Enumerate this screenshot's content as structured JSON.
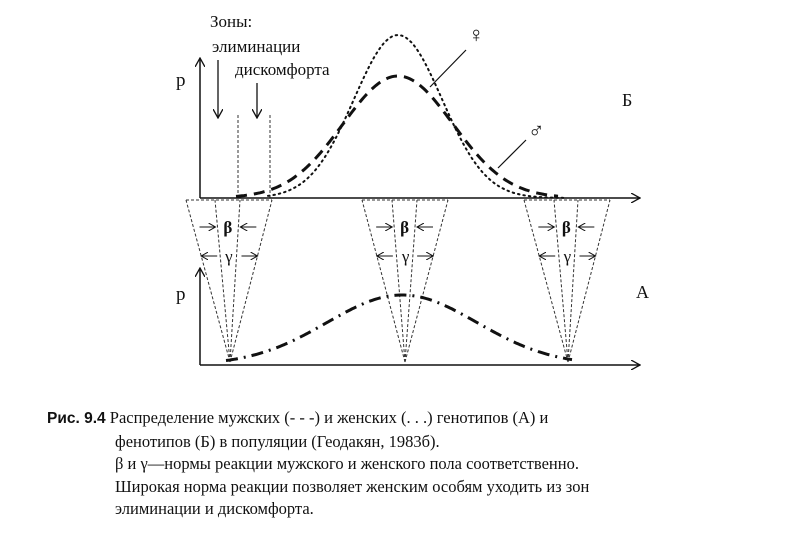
{
  "diagram": {
    "zones_title": "Зоны:",
    "zone_elimination": "элиминации",
    "zone_discomfort": "дискомфорта",
    "axis_p": "p",
    "panel_top_label": "Б",
    "panel_bottom_label": "А",
    "female_symbol": "♀",
    "male_symbol": "♂",
    "beta": "β",
    "gamma": "γ"
  },
  "caption": {
    "fig_label": "Рис. 9.4",
    "line1": "Распределение мужских (- - -) и женских (. . .) генотипов (А) и",
    "line2": "фенотипов (Б) в популяции (Геодакян, 1983б).",
    "line3": "β и γ—нормы реакции мужского и женского пола соответственно.",
    "line4": "Широкая норма реакции позволяет женским особям уходить из зон",
    "line5": "элиминации и дискомфорта."
  }
}
